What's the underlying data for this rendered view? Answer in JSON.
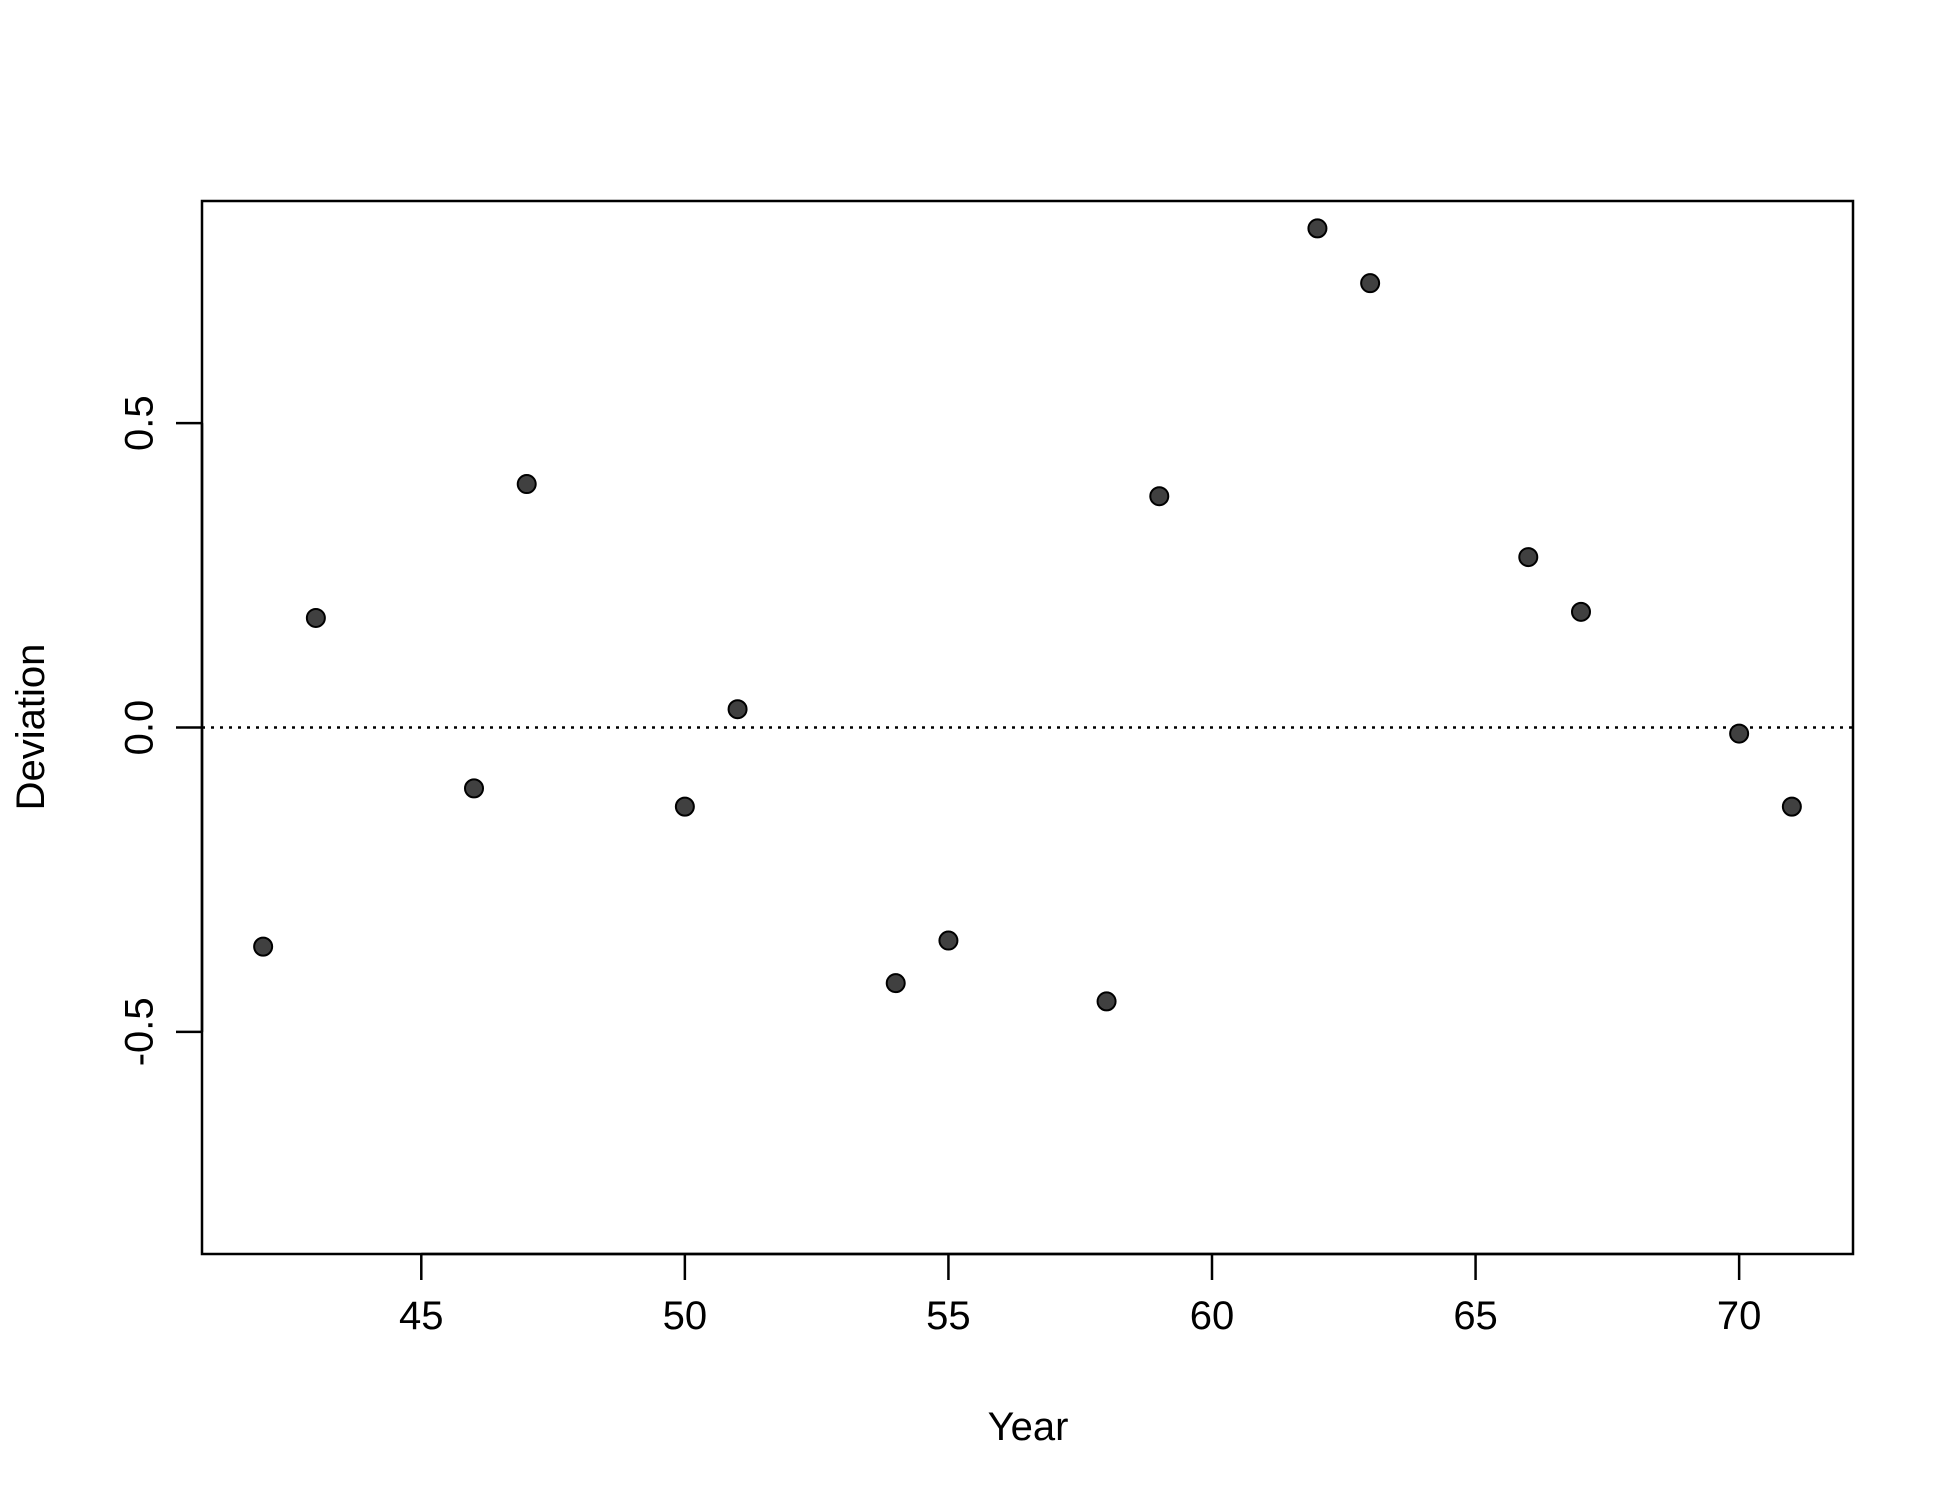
{
  "chart_data": {
    "type": "scatter",
    "title": "",
    "xlabel": "Year",
    "ylabel": "Deviation",
    "xlim": [
      40.84,
      72.16
    ],
    "ylim": [
      -0.865,
      0.865
    ],
    "x_ticks": [
      45,
      50,
      55,
      60,
      65,
      70
    ],
    "x_tick_labels": [
      "45",
      "50",
      "55",
      "60",
      "65",
      "70"
    ],
    "y_ticks": [
      -0.5,
      0.0,
      0.5
    ],
    "y_tick_labels": [
      "-0.5",
      "0.0",
      "0.5"
    ],
    "reference_line": {
      "y": 0.0,
      "style": "dotted"
    },
    "grid": false,
    "legend": "none",
    "point_color": "#404040",
    "points": [
      {
        "x": 42,
        "y": -0.36
      },
      {
        "x": 43,
        "y": 0.18
      },
      {
        "x": 46,
        "y": -0.1
      },
      {
        "x": 47,
        "y": 0.4
      },
      {
        "x": 50,
        "y": -0.13
      },
      {
        "x": 51,
        "y": 0.03
      },
      {
        "x": 54,
        "y": -0.42
      },
      {
        "x": 55,
        "y": -0.35
      },
      {
        "x": 58,
        "y": -0.45
      },
      {
        "x": 59,
        "y": 0.38
      },
      {
        "x": 62,
        "y": 0.82
      },
      {
        "x": 63,
        "y": 0.73
      },
      {
        "x": 66,
        "y": 0.28
      },
      {
        "x": 67,
        "y": 0.19
      },
      {
        "x": 70,
        "y": -0.01
      },
      {
        "x": 71,
        "y": -0.13
      }
    ]
  }
}
